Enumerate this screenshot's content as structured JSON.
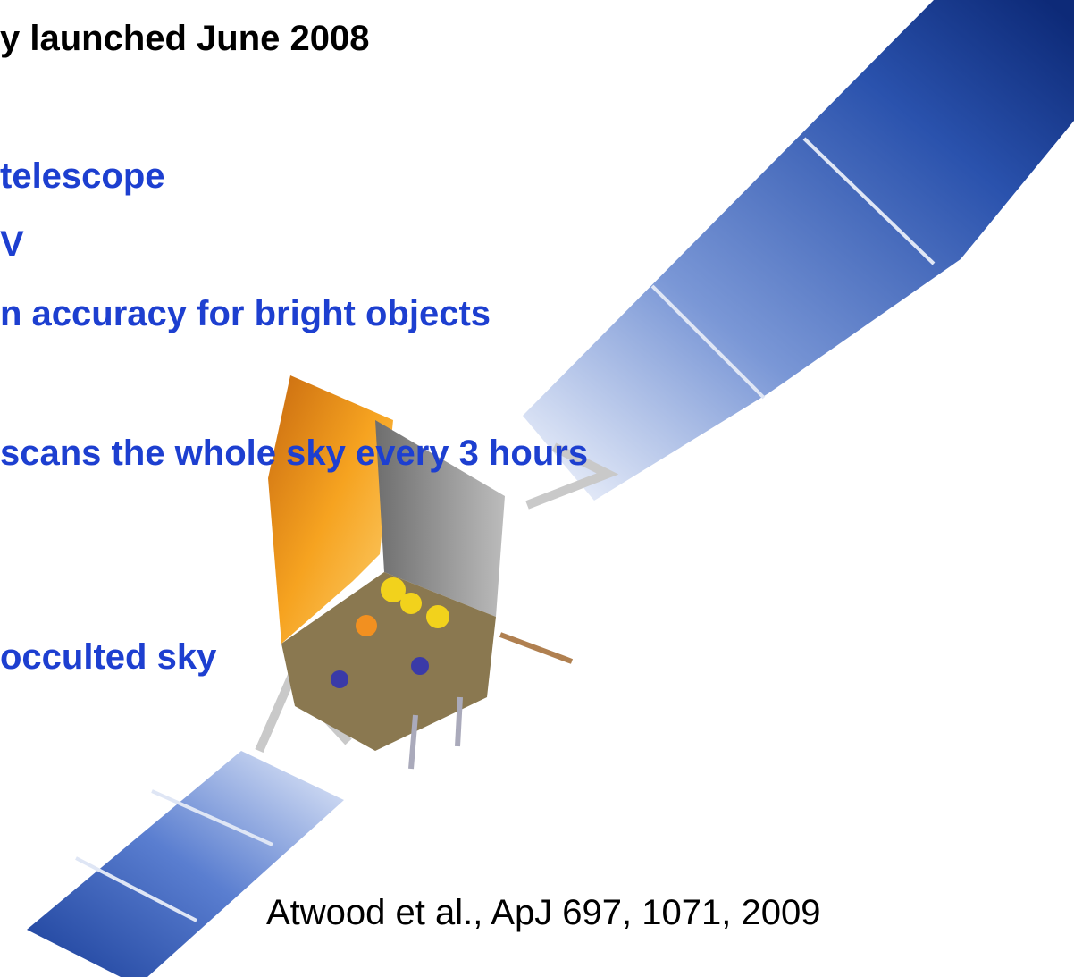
{
  "header": {
    "title": "y launched June 2008"
  },
  "bullets": [
    "telescope",
    "V",
    "n accuracy for bright objects",
    "scans the whole sky every 3 hours",
    "occulted sky"
  ],
  "citation": "Atwood et al., ApJ 697, 1071, 2009"
}
